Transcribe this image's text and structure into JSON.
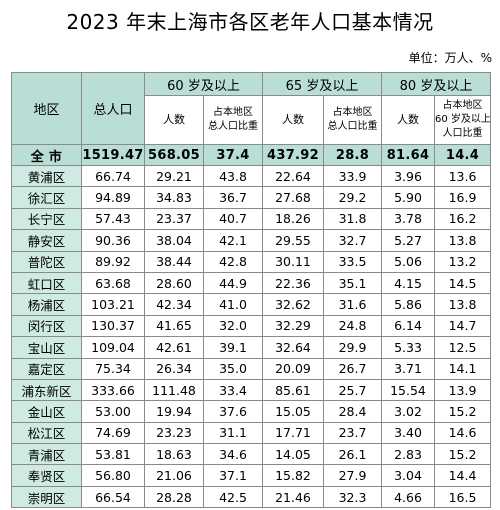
{
  "title": "2023 年末上海市各区老年人口基本情况",
  "unit": "单位：万人、%",
  "headers": {
    "region": "地区",
    "total_pop": "总人口",
    "g60": "60 岁及以上",
    "g65": "65 岁及以上",
    "g80": "80 岁及以上",
    "count": "人数",
    "ratio_line1": "占本地区",
    "ratio_line2": "总人口比重",
    "ratio80_line1": "占本地区",
    "ratio80_line2": "60 岁及以上",
    "ratio80_line3": "人口比重"
  },
  "total": {
    "name": "全  市",
    "total_pop": "1519.47",
    "p60": "568.05",
    "r60": "37.4",
    "p65": "437.92",
    "r65": "28.8",
    "p80": "81.64",
    "r80": "14.4"
  },
  "rows": [
    {
      "name": "黄浦区",
      "total_pop": "66.74",
      "p60": "29.21",
      "r60": "43.8",
      "p65": "22.64",
      "r65": "33.9",
      "p80": "3.96",
      "r80": "13.6"
    },
    {
      "name": "徐汇区",
      "total_pop": "94.89",
      "p60": "34.83",
      "r60": "36.7",
      "p65": "27.68",
      "r65": "29.2",
      "p80": "5.90",
      "r80": "16.9"
    },
    {
      "name": "长宁区",
      "total_pop": "57.43",
      "p60": "23.37",
      "r60": "40.7",
      "p65": "18.26",
      "r65": "31.8",
      "p80": "3.78",
      "r80": "16.2"
    },
    {
      "name": "静安区",
      "total_pop": "90.36",
      "p60": "38.04",
      "r60": "42.1",
      "p65": "29.55",
      "r65": "32.7",
      "p80": "5.27",
      "r80": "13.8"
    },
    {
      "name": "普陀区",
      "total_pop": "89.92",
      "p60": "38.44",
      "r60": "42.8",
      "p65": "30.11",
      "r65": "33.5",
      "p80": "5.06",
      "r80": "13.2"
    },
    {
      "name": "虹口区",
      "total_pop": "63.68",
      "p60": "28.60",
      "r60": "44.9",
      "p65": "22.36",
      "r65": "35.1",
      "p80": "4.15",
      "r80": "14.5"
    },
    {
      "name": "杨浦区",
      "total_pop": "103.21",
      "p60": "42.34",
      "r60": "41.0",
      "p65": "32.62",
      "r65": "31.6",
      "p80": "5.86",
      "r80": "13.8"
    },
    {
      "name": "闵行区",
      "total_pop": "130.37",
      "p60": "41.65",
      "r60": "32.0",
      "p65": "32.29",
      "r65": "24.8",
      "p80": "6.14",
      "r80": "14.7"
    },
    {
      "name": "宝山区",
      "total_pop": "109.04",
      "p60": "42.61",
      "r60": "39.1",
      "p65": "32.64",
      "r65": "29.9",
      "p80": "5.33",
      "r80": "12.5"
    },
    {
      "name": "嘉定区",
      "total_pop": "75.34",
      "p60": "26.34",
      "r60": "35.0",
      "p65": "20.09",
      "r65": "26.7",
      "p80": "3.71",
      "r80": "14.1"
    },
    {
      "name": "浦东新区",
      "total_pop": "333.66",
      "p60": "111.48",
      "r60": "33.4",
      "p65": "85.61",
      "r65": "25.7",
      "p80": "15.54",
      "r80": "13.9"
    },
    {
      "name": "金山区",
      "total_pop": "53.00",
      "p60": "19.94",
      "r60": "37.6",
      "p65": "15.05",
      "r65": "28.4",
      "p80": "3.02",
      "r80": "15.2"
    },
    {
      "name": "松江区",
      "total_pop": "74.69",
      "p60": "23.23",
      "r60": "31.1",
      "p65": "17.71",
      "r65": "23.7",
      "p80": "3.40",
      "r80": "14.6"
    },
    {
      "name": "青浦区",
      "total_pop": "53.81",
      "p60": "18.63",
      "r60": "34.6",
      "p65": "14.05",
      "r65": "26.1",
      "p80": "2.83",
      "r80": "15.2"
    },
    {
      "name": "奉贤区",
      "total_pop": "56.80",
      "p60": "21.06",
      "r60": "37.1",
      "p65": "15.82",
      "r65": "27.9",
      "p80": "3.04",
      "r80": "14.4"
    },
    {
      "name": "崇明区",
      "total_pop": "66.54",
      "p60": "28.28",
      "r60": "42.5",
      "p65": "21.46",
      "r65": "32.3",
      "p80": "4.66",
      "r80": "16.5"
    }
  ],
  "colors": {
    "header_bg": "#b9ded5",
    "name_bg": "#cfe9e3",
    "border": "#8a8a8a"
  }
}
